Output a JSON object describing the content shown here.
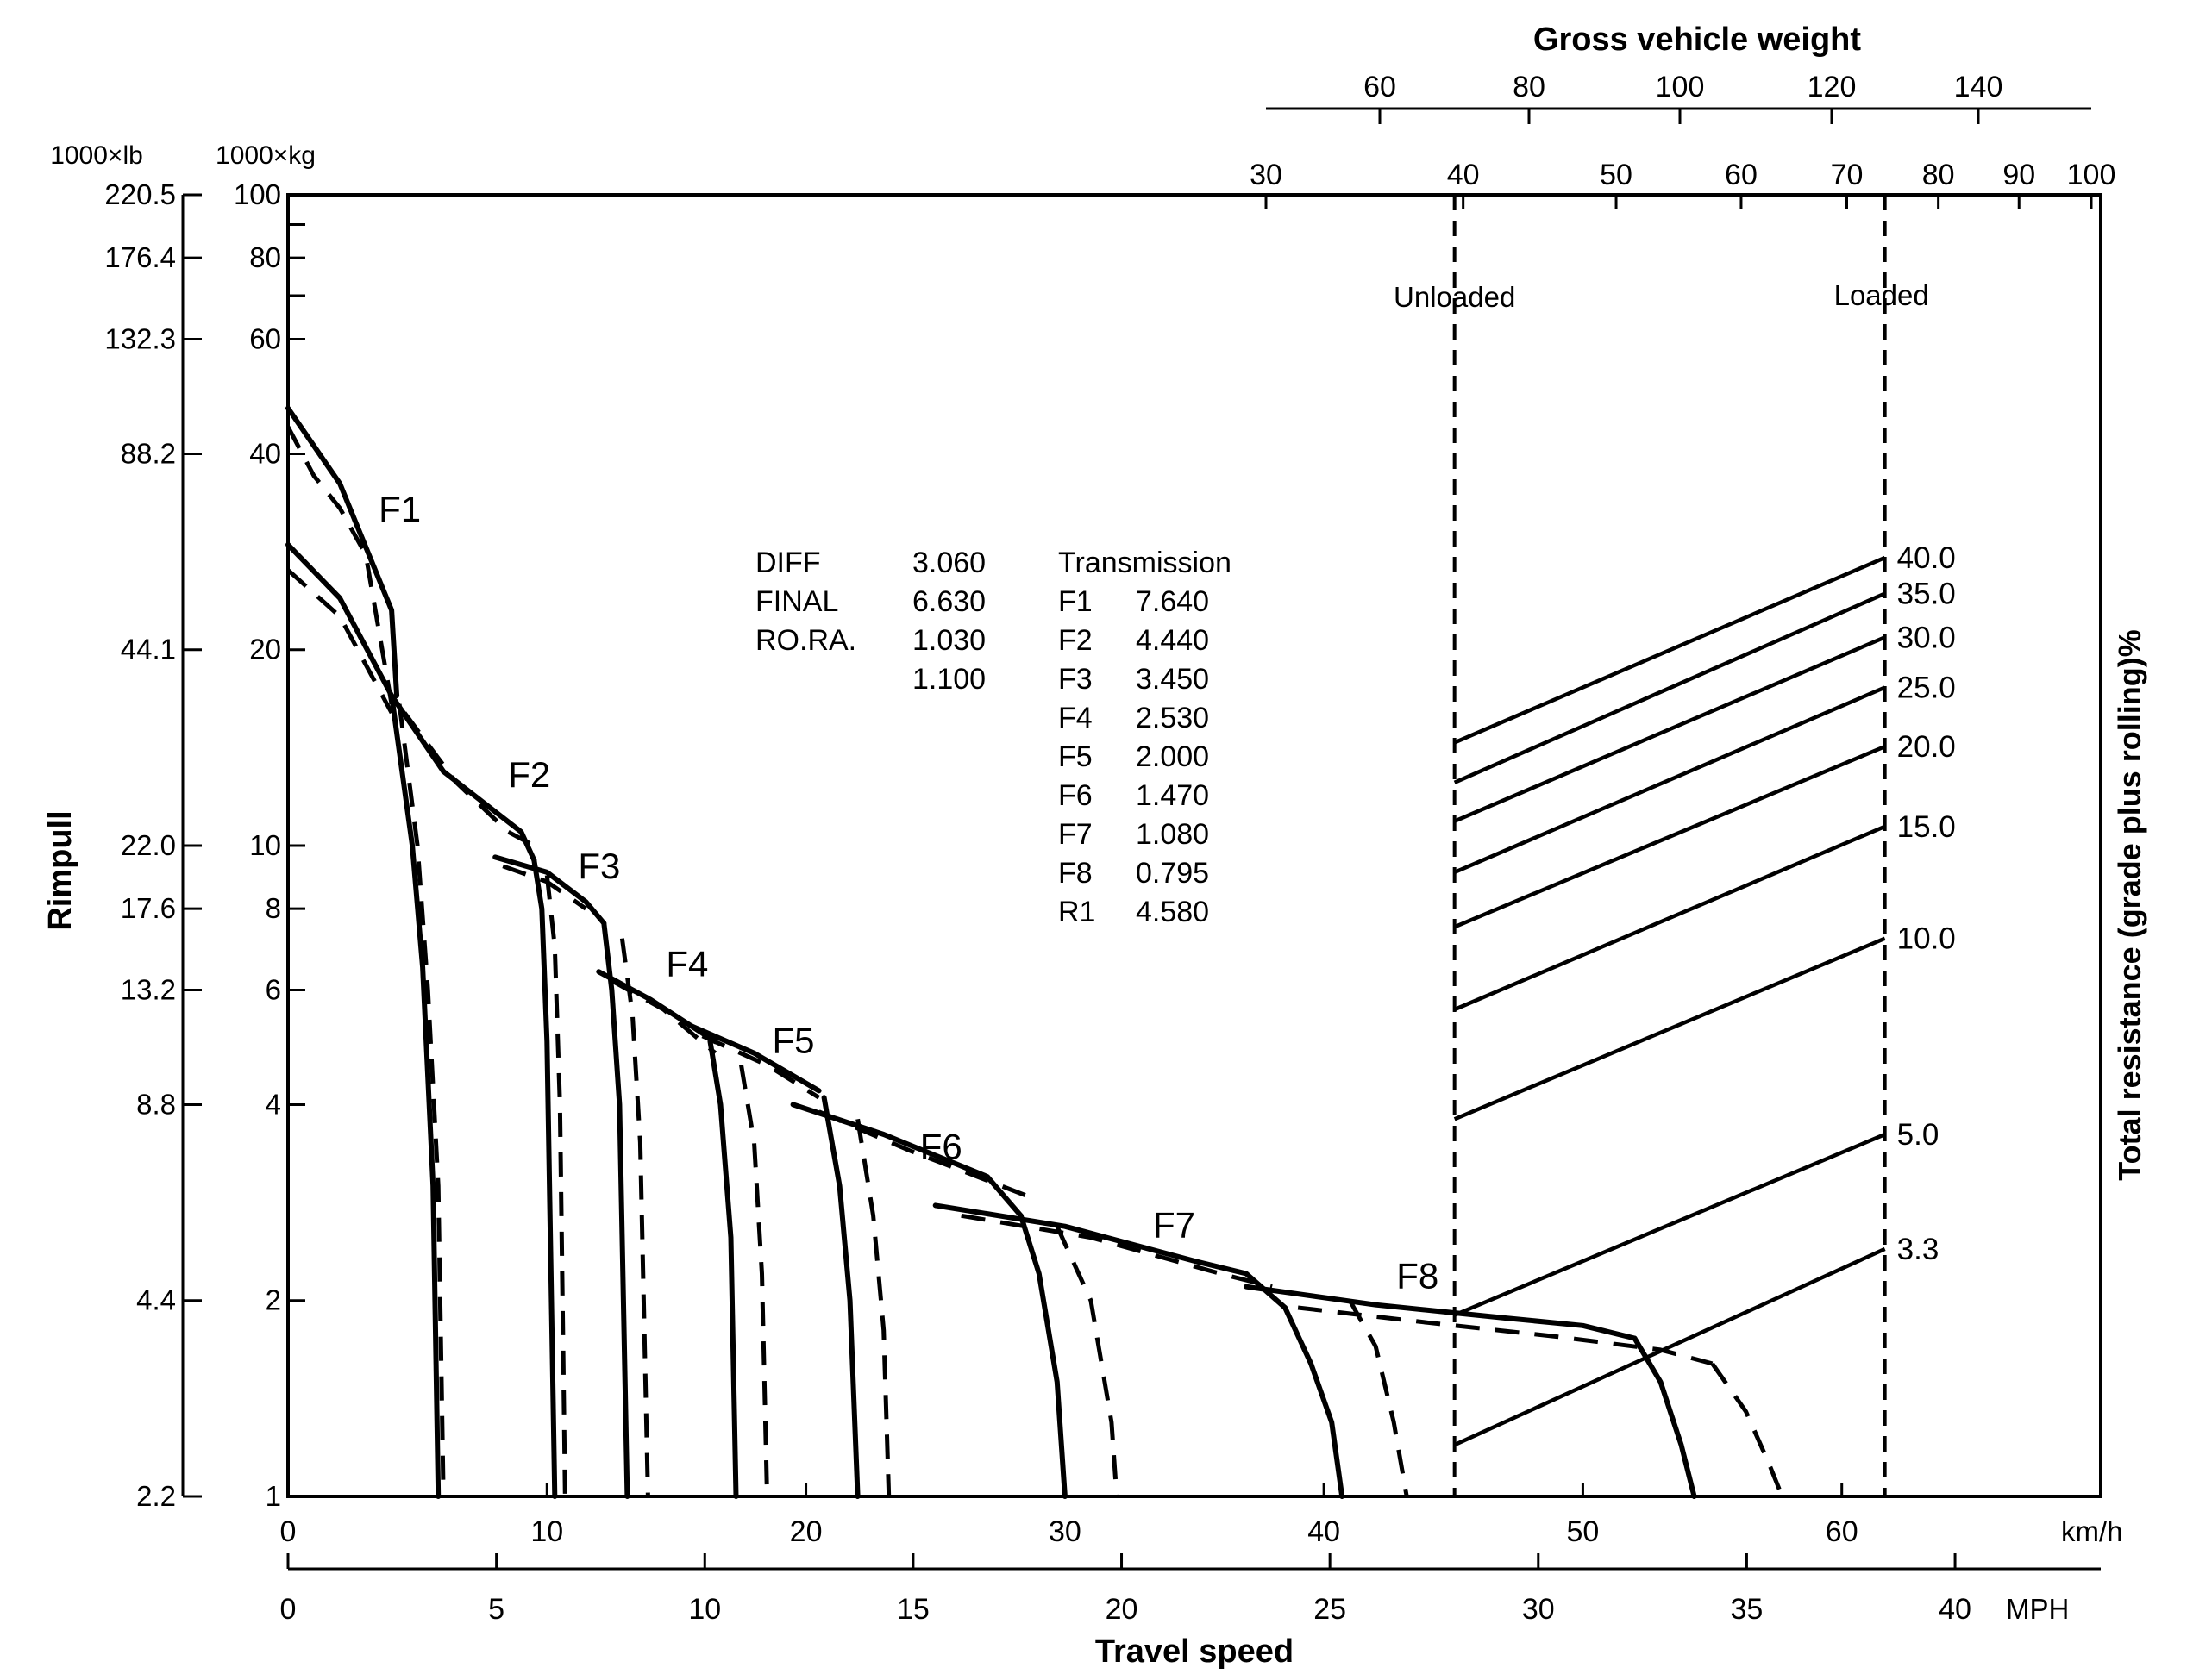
{
  "chart_data": {
    "type": "line",
    "title": "Gross vehicle weight",
    "xlabel": "Travel speed",
    "ylabel_left": "Rimpull",
    "ylabel_right": "Total resistance (grade plus rolling)%",
    "kmh_unit": "km/h",
    "mph_unit": "MPH",
    "lb_unit": "1000×lb",
    "kg_unit": "1000×kg",
    "x_kmh_range": [
      0,
      70
    ],
    "y_kg_range": [
      1,
      100
    ],
    "y_scale": "log",
    "grid": false,
    "x_kmh_ticks": [
      "0",
      "10",
      "20",
      "30",
      "40",
      "50",
      "60"
    ],
    "x_mph_ticks": [
      "0",
      "5",
      "10",
      "15",
      "20",
      "25",
      "30",
      "35",
      "40"
    ],
    "y_kg_ticks": [
      {
        "v": 1,
        "l": "1"
      },
      {
        "v": 2,
        "l": "2"
      },
      {
        "v": 4,
        "l": "4"
      },
      {
        "v": 6,
        "l": "6"
      },
      {
        "v": 8,
        "l": "8"
      },
      {
        "v": 10,
        "l": "10"
      },
      {
        "v": 20,
        "l": "20"
      },
      {
        "v": 40,
        "l": "40"
      },
      {
        "v": 60,
        "l": "60"
      },
      {
        "v": 80,
        "l": "80"
      },
      {
        "v": 100,
        "l": "100"
      }
    ],
    "y_kg_minor_ticks": [
      70,
      90
    ],
    "y_lb_ticks": [
      {
        "v": 1,
        "l": "2.2"
      },
      {
        "v": 2,
        "l": "4.4"
      },
      {
        "v": 4,
        "l": "8.8"
      },
      {
        "v": 6,
        "l": "13.2"
      },
      {
        "v": 8,
        "l": "17.6"
      },
      {
        "v": 10,
        "l": "22.0"
      },
      {
        "v": 20,
        "l": "44.1"
      },
      {
        "v": 40,
        "l": "88.2"
      },
      {
        "v": 60,
        "l": "132.3"
      },
      {
        "v": 80,
        "l": "176.4"
      },
      {
        "v": 100,
        "l": "220.5"
      }
    ],
    "weight_ticks_upper": [
      {
        "v": 60,
        "l": "60"
      },
      {
        "v": 80,
        "l": "80"
      },
      {
        "v": 100,
        "l": "100"
      },
      {
        "v": 120,
        "l": "120"
      },
      {
        "v": 140,
        "l": "140"
      }
    ],
    "weight_ticks_lower": [
      {
        "v": 30,
        "l": "30"
      },
      {
        "v": 40,
        "l": "40"
      },
      {
        "v": 50,
        "l": "50"
      },
      {
        "v": 60,
        "l": "60"
      },
      {
        "v": 70,
        "l": "70"
      },
      {
        "v": 80,
        "l": "80"
      },
      {
        "v": 90,
        "l": "90"
      },
      {
        "v": 100,
        "l": "100"
      }
    ],
    "weight_range": [
      30,
      100
    ],
    "weight_unloaded": 39.5,
    "weight_loaded": 74,
    "unloaded_label": "Unloaded",
    "loaded_label": "Loaded",
    "resistance_lines": [
      {
        "label": "40.0",
        "y_unloaded": 14.4,
        "y_loaded": 27.7
      },
      {
        "label": "35.0",
        "y_unloaded": 12.5,
        "y_loaded": 24.4
      },
      {
        "label": "30.0",
        "y_unloaded": 10.9,
        "y_loaded": 20.9
      },
      {
        "label": "25.0",
        "y_unloaded": 9.1,
        "y_loaded": 17.5
      },
      {
        "label": "20.0",
        "y_unloaded": 7.5,
        "y_loaded": 14.2
      },
      {
        "label": "15.0",
        "y_unloaded": 5.6,
        "y_loaded": 10.7
      },
      {
        "label": "10.0",
        "y_unloaded": 3.8,
        "y_loaded": 7.2
      },
      {
        "label": "5.0",
        "y_unloaded": 1.9,
        "y_loaded": 3.6
      },
      {
        "label": "3.3",
        "y_unloaded": 1.2,
        "y_loaded": 2.4
      }
    ],
    "series": [
      {
        "name": "F1",
        "style": "solid",
        "points": [
          [
            0,
            47
          ],
          [
            2,
            36
          ],
          [
            4,
            23
          ],
          [
            4.2,
            17
          ]
        ]
      },
      {
        "name": "F1",
        "style": "solid",
        "points": [
          [
            0,
            29
          ],
          [
            2,
            24
          ],
          [
            4,
            17
          ]
        ]
      },
      {
        "name": "F1",
        "style": "dashed",
        "points": [
          [
            0,
            44
          ],
          [
            1,
            37
          ],
          [
            2,
            33
          ],
          [
            3,
            28
          ],
          [
            4,
            16.5
          ]
        ]
      },
      {
        "name": "F1",
        "style": "dashed",
        "points": [
          [
            0,
            26.5
          ],
          [
            2,
            22.5
          ],
          [
            4,
            16
          ]
        ]
      },
      {
        "name": "F1",
        "style": "solid",
        "points": [
          [
            4,
            17
          ],
          [
            4.8,
            10
          ],
          [
            5.2,
            6.5
          ],
          [
            5.6,
            3
          ],
          [
            5.8,
            1
          ]
        ]
      },
      {
        "name": "F1",
        "style": "dashed",
        "points": [
          [
            4.3,
            16.5
          ],
          [
            5,
            10
          ],
          [
            5.4,
            6
          ],
          [
            5.8,
            3
          ],
          [
            6,
            1
          ]
        ]
      },
      {
        "name": "F2",
        "style": "solid",
        "points": [
          [
            4,
            17
          ],
          [
            6,
            13
          ],
          [
            9,
            10.5
          ],
          [
            9.5,
            9.5
          ]
        ]
      },
      {
        "name": "F2",
        "style": "dashed",
        "points": [
          [
            4.5,
            16
          ],
          [
            6.5,
            12.5
          ],
          [
            8.5,
            10.5
          ],
          [
            9.5,
            10
          ]
        ]
      },
      {
        "name": "F2",
        "style": "solid",
        "points": [
          [
            9.5,
            9.5
          ],
          [
            9.8,
            8
          ],
          [
            10,
            5
          ],
          [
            10.3,
            1
          ]
        ]
      },
      {
        "name": "F2",
        "style": "dashed",
        "points": [
          [
            10,
            9
          ],
          [
            10.3,
            7
          ],
          [
            10.5,
            4
          ],
          [
            10.7,
            1
          ]
        ]
      },
      {
        "name": "F3",
        "style": "solid",
        "points": [
          [
            8,
            9.6
          ],
          [
            10,
            9.1
          ],
          [
            11.5,
            8.2
          ],
          [
            12.2,
            7.6
          ]
        ]
      },
      {
        "name": "F3",
        "style": "dashed",
        "points": [
          [
            8.3,
            9.3
          ],
          [
            10,
            8.8
          ],
          [
            11.5,
            8
          ]
        ]
      },
      {
        "name": "F3",
        "style": "solid",
        "points": [
          [
            12.2,
            7.6
          ],
          [
            12.5,
            6
          ],
          [
            12.8,
            4
          ],
          [
            13.1,
            1
          ]
        ]
      },
      {
        "name": "F3",
        "style": "dashed",
        "points": [
          [
            12.9,
            7.2
          ],
          [
            13.3,
            5.5
          ],
          [
            13.6,
            3.5
          ],
          [
            13.9,
            1
          ]
        ]
      },
      {
        "name": "F4",
        "style": "solid",
        "points": [
          [
            12,
            6.4
          ],
          [
            14,
            5.8
          ],
          [
            16.5,
            5
          ]
        ]
      },
      {
        "name": "F4",
        "style": "dashed",
        "points": [
          [
            12.5,
            6.2
          ],
          [
            14.5,
            5.6
          ],
          [
            16.5,
            4.8
          ]
        ]
      },
      {
        "name": "F4",
        "style": "solid",
        "points": [
          [
            16.3,
            5
          ],
          [
            16.7,
            4
          ],
          [
            17.1,
            2.5
          ],
          [
            17.3,
            1
          ]
        ]
      },
      {
        "name": "F4",
        "style": "dashed",
        "points": [
          [
            17.5,
            4.6
          ],
          [
            18,
            3.5
          ],
          [
            18.3,
            2.2
          ],
          [
            18.5,
            1
          ]
        ]
      },
      {
        "name": "F5",
        "style": "solid",
        "points": [
          [
            15.5,
            5.3
          ],
          [
            18,
            4.8
          ],
          [
            20.5,
            4.2
          ]
        ]
      },
      {
        "name": "F5",
        "style": "dashed",
        "points": [
          [
            16,
            5.1
          ],
          [
            18.5,
            4.6
          ],
          [
            20.5,
            4.1
          ]
        ]
      },
      {
        "name": "F5",
        "style": "solid",
        "points": [
          [
            20.7,
            4.1
          ],
          [
            21.3,
            3
          ],
          [
            21.7,
            2
          ],
          [
            22,
            1
          ]
        ]
      },
      {
        "name": "F5",
        "style": "dashed",
        "points": [
          [
            22,
            3.8
          ],
          [
            22.6,
            2.7
          ],
          [
            23,
            1.8
          ],
          [
            23.2,
            1
          ]
        ]
      },
      {
        "name": "F6",
        "style": "solid",
        "points": [
          [
            19.5,
            4
          ],
          [
            23,
            3.6
          ],
          [
            27,
            3.1
          ],
          [
            28.3,
            2.7
          ]
        ]
      },
      {
        "name": "F6",
        "style": "dashed",
        "points": [
          [
            20.5,
            3.9
          ],
          [
            24,
            3.4
          ],
          [
            28.5,
            2.9
          ]
        ]
      },
      {
        "name": "F6",
        "style": "solid",
        "points": [
          [
            28.3,
            2.7
          ],
          [
            29,
            2.2
          ],
          [
            29.7,
            1.5
          ],
          [
            30,
            1
          ]
        ]
      },
      {
        "name": "F6",
        "style": "dashed",
        "points": [
          [
            29.7,
            2.6
          ],
          [
            31,
            2
          ],
          [
            31.8,
            1.3
          ],
          [
            32,
            1
          ]
        ]
      },
      {
        "name": "F7",
        "style": "solid",
        "points": [
          [
            25,
            2.8
          ],
          [
            30,
            2.6
          ],
          [
            35,
            2.3
          ],
          [
            37,
            2.2
          ],
          [
            38.5,
            1.95
          ]
        ]
      },
      {
        "name": "F7",
        "style": "dashed",
        "points": [
          [
            26,
            2.7
          ],
          [
            31,
            2.5
          ],
          [
            36,
            2.2
          ],
          [
            38,
            2.1
          ]
        ]
      },
      {
        "name": "F7",
        "style": "solid",
        "points": [
          [
            38.5,
            1.95
          ],
          [
            39.5,
            1.6
          ],
          [
            40.3,
            1.3
          ],
          [
            40.7,
            1
          ]
        ]
      },
      {
        "name": "F7",
        "style": "dashed",
        "points": [
          [
            41,
            2
          ],
          [
            42,
            1.7
          ],
          [
            42.7,
            1.3
          ],
          [
            43.2,
            1
          ]
        ]
      },
      {
        "name": "F8",
        "style": "solid",
        "points": [
          [
            37,
            2.1
          ],
          [
            42,
            1.97
          ],
          [
            47,
            1.88
          ],
          [
            50,
            1.83
          ],
          [
            52,
            1.75
          ]
        ]
      },
      {
        "name": "F8",
        "style": "dashed",
        "points": [
          [
            39,
            1.95
          ],
          [
            44,
            1.85
          ],
          [
            49,
            1.76
          ],
          [
            53,
            1.68
          ],
          [
            55,
            1.6
          ]
        ]
      },
      {
        "name": "F8",
        "style": "solid",
        "points": [
          [
            52,
            1.75
          ],
          [
            53,
            1.5
          ],
          [
            53.8,
            1.2
          ],
          [
            54.3,
            1
          ]
        ]
      },
      {
        "name": "F8",
        "style": "dashed",
        "points": [
          [
            55,
            1.6
          ],
          [
            56.3,
            1.35
          ],
          [
            57.2,
            1.12
          ],
          [
            57.7,
            1
          ]
        ]
      }
    ],
    "gear_labels": [
      {
        "name": "F1",
        "x": 3.5,
        "y": 31.5
      },
      {
        "name": "F2",
        "x": 8.5,
        "y": 12.3
      },
      {
        "name": "F3",
        "x": 11.2,
        "y": 8.9
      },
      {
        "name": "F4",
        "x": 14.6,
        "y": 6.3
      },
      {
        "name": "F5",
        "x": 18.7,
        "y": 4.8
      },
      {
        "name": "F6",
        "x": 24.4,
        "y": 3.3
      },
      {
        "name": "F7",
        "x": 33.4,
        "y": 2.5
      },
      {
        "name": "F8",
        "x": 42.8,
        "y": 2.09
      }
    ],
    "spec_table": {
      "diff_rows": [
        {
          "key": "DIFF",
          "value": "3.060"
        },
        {
          "key": "FINAL",
          "value": "6.630"
        },
        {
          "key": "RO.RA.",
          "value": "1.030"
        },
        {
          "key": "",
          "value": "1.100"
        }
      ],
      "transmission_header": "Transmission",
      "transmission_rows": [
        {
          "gear": "F1",
          "ratio": "7.640"
        },
        {
          "gear": "F2",
          "ratio": "4.440"
        },
        {
          "gear": "F3",
          "ratio": "3.450"
        },
        {
          "gear": "F4",
          "ratio": "2.530"
        },
        {
          "gear": "F5",
          "ratio": "2.000"
        },
        {
          "gear": "F6",
          "ratio": "1.470"
        },
        {
          "gear": "F7",
          "ratio": "1.080"
        },
        {
          "gear": "F8",
          "ratio": "0.795"
        },
        {
          "gear": "R1",
          "ratio": "4.580"
        }
      ]
    }
  }
}
